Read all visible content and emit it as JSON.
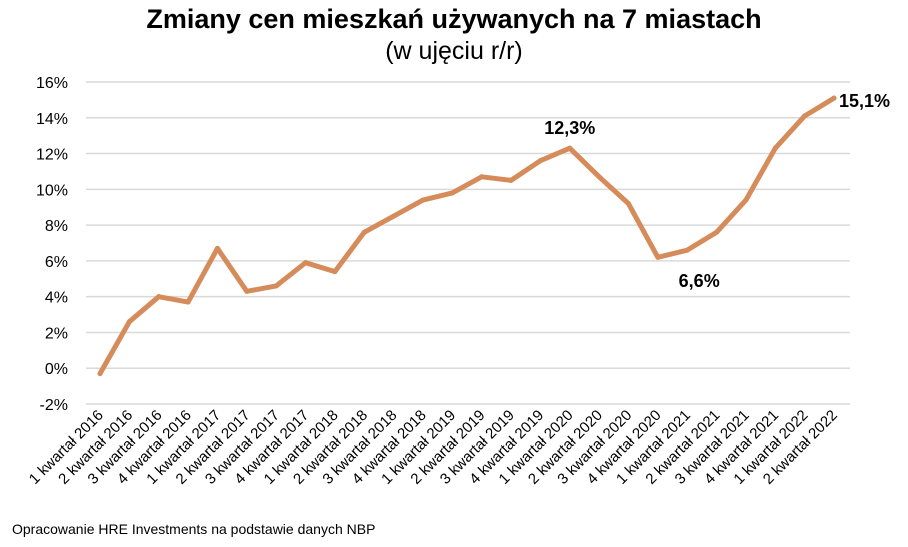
{
  "chart_data": {
    "type": "line",
    "title": "Zmiany cen mieszkań używanych na 7 miastach",
    "subtitle": "(w ujęciu r/r)",
    "xlabel": "",
    "ylabel": "",
    "ylim": [
      -2,
      16
    ],
    "yticks": [
      -2,
      0,
      2,
      4,
      6,
      8,
      10,
      12,
      14,
      16
    ],
    "ytick_labels": [
      "-2%",
      "0%",
      "2%",
      "4%",
      "6%",
      "8%",
      "10%",
      "12%",
      "14%",
      "16%"
    ],
    "grid": true,
    "line_color": "#D58B5A",
    "grid_color": "#D9D9D9",
    "categories": [
      "1 kwartał 2016",
      "2 kwartał 2016",
      "3 kwartał 2016",
      "4 kwartał 2016",
      "1 kwartał 2017",
      "2 kwartał 2017",
      "3 kwartał 2017",
      "4 kwartał 2017",
      "1 kwartał 2018",
      "2 kwartał 2018",
      "3 kwartał 2018",
      "4 kwartał 2018",
      "1 kwartał 2019",
      "2 kwartał 2019",
      "3 kwartał 2019",
      "4 kwartał 2019",
      "1 kwartał 2020",
      "2 kwartał 2020",
      "3 kwartał 2020",
      "4 kwartał 2020",
      "1 kwartał 2021",
      "2 kwartał 2021",
      "3 kwartał 2021",
      "4 kwartał 2021",
      "1 kwartał 2022",
      "2 kwartał 2022"
    ],
    "values": [
      -0.3,
      2.6,
      4.0,
      3.7,
      6.7,
      4.3,
      4.6,
      5.9,
      5.4,
      7.6,
      8.5,
      9.4,
      9.8,
      10.7,
      10.5,
      11.6,
      12.3,
      10.7,
      9.2,
      6.2,
      6.6,
      7.6,
      9.4,
      12.3,
      14.1,
      15.1
    ],
    "annotations": [
      {
        "index": 16,
        "text": "12,3%",
        "position": "above"
      },
      {
        "index": 20,
        "text": "6,6%",
        "position": "below"
      },
      {
        "index": 25,
        "text": "15,1%",
        "position": "right"
      }
    ]
  },
  "footer": {
    "source": "Opracowanie HRE Investments na podstawie danych NBP"
  }
}
